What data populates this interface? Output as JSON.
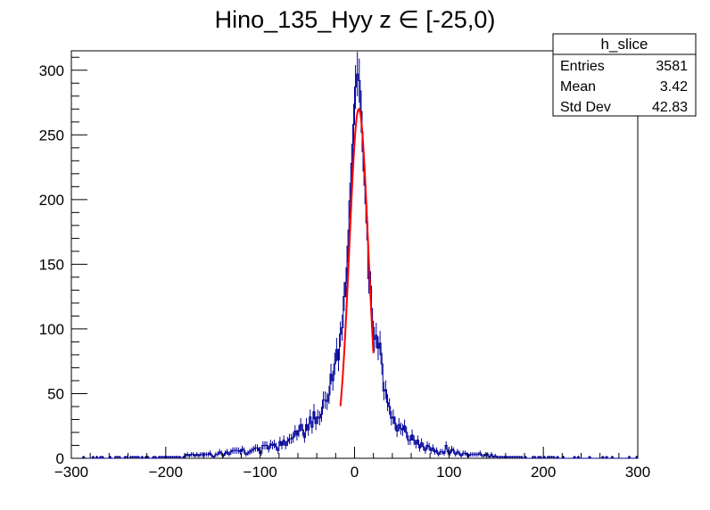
{
  "chart_data": {
    "type": "histogram",
    "title": "Hino_135_Hyy z  ∈ [-25,0)",
    "xlabel": "",
    "ylabel": "",
    "xlim": [
      -300,
      300
    ],
    "ylim": [
      0,
      315
    ],
    "x_ticks": [
      -300,
      -200,
      -100,
      0,
      100,
      200,
      300
    ],
    "y_ticks": [
      0,
      50,
      100,
      150,
      200,
      250,
      300
    ],
    "bin_width": 2,
    "histogram_color": "#000099",
    "fit_color": "#ff0000",
    "grid": false,
    "legend": "none",
    "stats_box": {
      "name": "h_slice",
      "placement": "top-right",
      "rows": [
        {
          "label": "Entries",
          "value": "3581"
        },
        {
          "label": "Mean",
          "value": "3.42"
        },
        {
          "label": "Std Dev",
          "value": "42.83"
        }
      ]
    },
    "envelope": [
      [
        -300,
        0.5
      ],
      [
        -250,
        0.8
      ],
      [
        -200,
        1.5
      ],
      [
        -150,
        3
      ],
      [
        -120,
        5
      ],
      [
        -100,
        6.5
      ],
      [
        -90,
        9
      ],
      [
        -80,
        12
      ],
      [
        -70,
        15
      ],
      [
        -60,
        19
      ],
      [
        -50,
        24
      ],
      [
        -40,
        32
      ],
      [
        -30,
        45
      ],
      [
        -25,
        58
      ],
      [
        -20,
        70
      ],
      [
        -15,
        95
      ],
      [
        -10,
        125
      ],
      [
        -6,
        170
      ],
      [
        -3,
        220
      ],
      [
        0,
        265
      ],
      [
        2,
        280
      ],
      [
        4,
        285
      ],
      [
        6,
        280
      ],
      [
        8,
        265
      ],
      [
        10,
        225
      ],
      [
        12,
        190
      ],
      [
        15,
        145
      ],
      [
        18,
        110
      ],
      [
        20,
        100
      ],
      [
        25,
        85
      ],
      [
        30,
        63
      ],
      [
        35,
        50
      ],
      [
        40,
        30
      ],
      [
        45,
        28
      ],
      [
        50,
        24
      ],
      [
        60,
        18
      ],
      [
        70,
        10
      ],
      [
        80,
        7
      ],
      [
        100,
        5
      ],
      [
        120,
        3
      ],
      [
        150,
        2
      ],
      [
        200,
        1
      ],
      [
        250,
        0.6
      ],
      [
        300,
        0.4
      ]
    ],
    "fit": {
      "function": "gaus",
      "constant": 270,
      "mean": 4.5,
      "sigma": 10,
      "range": [
        -15,
        20
      ]
    }
  }
}
